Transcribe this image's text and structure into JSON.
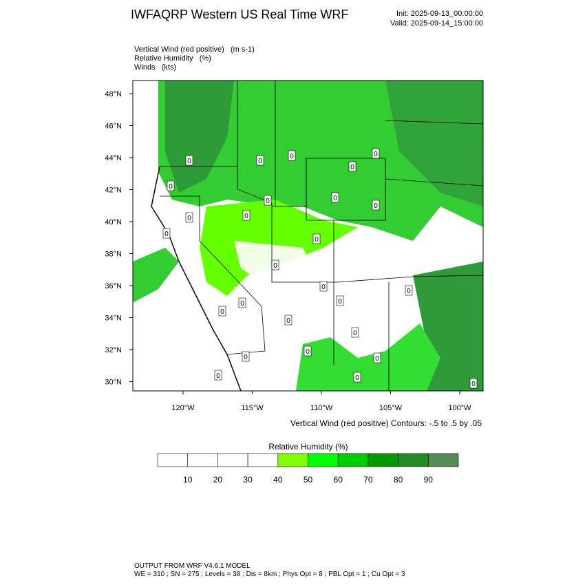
{
  "header": {
    "title": "IWFAQRP Western US Real Time WRF",
    "init": "Init: 2025-09-13_00:00:00",
    "valid": "Valid: 2025-09-14_15:00:00"
  },
  "fields": [
    "Vertical Wind (red positive)   (m s-1)",
    "Relative Humidity   (%)",
    "Winds   (kts)"
  ],
  "map": {
    "lat_labels": [
      "48°N",
      "46°N",
      "44°N",
      "42°N",
      "40°N",
      "38°N",
      "36°N",
      "34°N",
      "32°N",
      "30°N"
    ],
    "lon_labels": [
      "120°W",
      "115°W",
      "110°W",
      "105°W",
      "100°W"
    ],
    "contour_label": "0",
    "contour_note": "Vertical Wind (red positive) Contours: -.5 to .5 by .05"
  },
  "colorbar": {
    "title": "Relative Humidity  (%)",
    "ticks": [
      10,
      20,
      30,
      40,
      50,
      60,
      70,
      80,
      90
    ],
    "colors": [
      "#ffffff",
      "#ffffff",
      "#ffffff",
      "#ffffff",
      "#80ff00",
      "#00ff00",
      "#00cc00",
      "#009900",
      "#238b23",
      "#548a54"
    ]
  },
  "footer": {
    "line1": "OUTPUT FROM WRF V4.6.1 MODEL",
    "line2": "WE = 310 ; SN = 275 ; Levels = 38 ; Dis = 8km ; Phys Opt = 8 ; PBL Opt = 1 ; Cu Opt = 3"
  }
}
